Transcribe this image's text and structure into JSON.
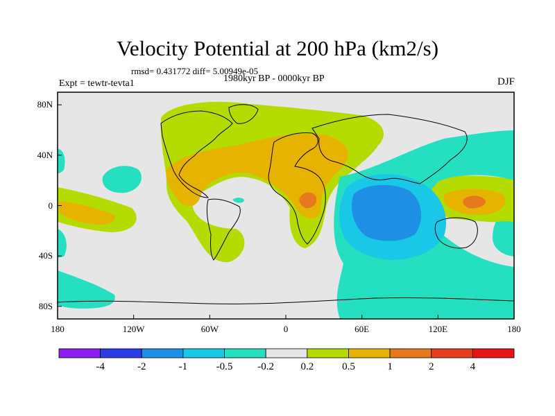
{
  "title": "Velocity Potential at 200 hPa (km2/s)",
  "stats": "rmsd= 0.431772 diff= 5.00949e-05",
  "experiment": "Expt = tewtr-tevta1",
  "period": "1980kyr BP - 0000kyr BP",
  "season": "DJF",
  "axes": {
    "x_ticks": [
      {
        "label": "180",
        "lon": -180
      },
      {
        "label": "120W",
        "lon": -120
      },
      {
        "label": "60W",
        "lon": -60
      },
      {
        "label": "0",
        "lon": 0
      },
      {
        "label": "60E",
        "lon": 60
      },
      {
        "label": "120E",
        "lon": 120
      },
      {
        "label": "180",
        "lon": 180
      }
    ],
    "y_ticks": [
      {
        "label": "80N",
        "lat": 80
      },
      {
        "label": "40N",
        "lat": 40
      },
      {
        "label": "0",
        "lat": 0
      },
      {
        "label": "40S",
        "lat": -40
      },
      {
        "label": "80S",
        "lat": -80
      }
    ],
    "lon_range": [
      -180,
      180
    ],
    "lat_range": [
      -90,
      90
    ]
  },
  "colorbar": {
    "levels": [
      "-4",
      "-2",
      "-1",
      "-0.5",
      "-0.2",
      "0.2",
      "0.5",
      "1",
      "2",
      "4"
    ],
    "colors": [
      "#8c1ef0",
      "#2a3ce6",
      "#1f8fe6",
      "#19c8e6",
      "#25e0c0",
      "#e6e6e6",
      "#b4dc00",
      "#e6b400",
      "#e6781e",
      "#e63c1e",
      "#e61414"
    ]
  },
  "colors": {
    "background": "#e6e6e6",
    "coast": "#000000"
  }
}
